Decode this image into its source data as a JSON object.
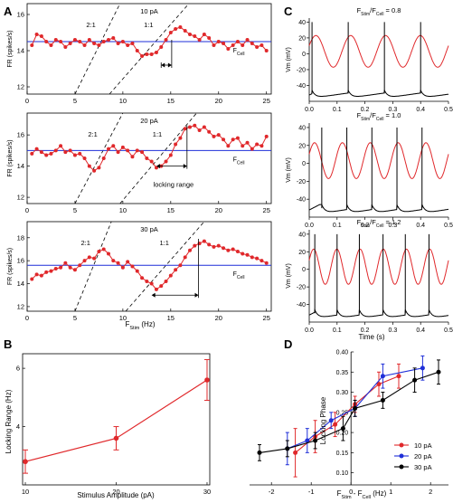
{
  "panel_letters": [
    "A",
    "B",
    "C",
    "D"
  ],
  "panel_a": {
    "xlabel": "F",
    "xlabel_sub": "Stim",
    "xlabel_unit": "(Hz)",
    "ylabel": "FR (spikes/s)",
    "fcell_label": "F",
    "fcell_sub": "Cell",
    "ratio_21": "2:1",
    "ratio_11": "1:1",
    "locking_range_label": "locking range"
  },
  "panel_c": {
    "prefix": "F",
    "sub_stim": "Stim",
    "sub_cell": "Cell",
    "ylabel": "Vm (mV)",
    "xlabel": "Time (s)"
  },
  "chart_data": [
    {
      "type": "line",
      "panel": "A",
      "title": "10 pA",
      "xlim": [
        0,
        25.5
      ],
      "ylim": [
        11.6,
        16.6
      ],
      "xticks": [
        0,
        5,
        10,
        15,
        20,
        25
      ],
      "yticks": [
        12,
        14,
        16
      ],
      "fcell": 14.5,
      "x": [
        0.5,
        1,
        1.5,
        2,
        2.5,
        3,
        3.5,
        4,
        4.5,
        5,
        5.5,
        6,
        6.5,
        7,
        7.5,
        8,
        8.5,
        9,
        9.5,
        10,
        10.5,
        11,
        11.5,
        12,
        12.5,
        13,
        13.5,
        14,
        14.5,
        15,
        15.5,
        16,
        16.5,
        17,
        17.5,
        18,
        18.5,
        19,
        19.5,
        20,
        20.5,
        21,
        21.5,
        22,
        22.5,
        23,
        23.5,
        24,
        24.5,
        25
      ],
      "y": [
        14.3,
        14.9,
        14.8,
        14.5,
        14.3,
        14.6,
        14.5,
        14.2,
        14.4,
        14.6,
        14.5,
        14.3,
        14.6,
        14.4,
        14.3,
        14.5,
        14.6,
        14.7,
        14.4,
        14.5,
        14.3,
        14.4,
        14.0,
        13.7,
        13.8,
        13.8,
        13.9,
        14.2,
        14.6,
        15.0,
        15.2,
        15.3,
        15.1,
        14.9,
        14.8,
        14.6,
        14.9,
        14.7,
        14.3,
        14.5,
        14.4,
        14.1,
        14.3,
        14.5,
        14.3,
        14.6,
        14.4,
        14.2,
        14.3,
        14.0
      ],
      "line_21": [
        [
          5.0,
          11.6
        ],
        [
          9.7,
          16.6
        ]
      ],
      "line_11": [
        [
          8.6,
          11.6
        ],
        [
          16.9,
          16.6
        ]
      ],
      "range": [
        14.0,
        15.1
      ]
    },
    {
      "type": "line",
      "panel": "A",
      "title": "20 pA",
      "xlim": [
        0,
        25.5
      ],
      "ylim": [
        11.6,
        17.4
      ],
      "xticks": [
        0,
        5,
        10,
        15,
        20,
        25
      ],
      "yticks": [
        12,
        14,
        16
      ],
      "fcell": 15.0,
      "x": [
        0.5,
        1,
        1.5,
        2,
        2.5,
        3,
        3.5,
        4,
        4.5,
        5,
        5.5,
        6,
        6.5,
        7,
        7.5,
        8,
        8.5,
        9,
        9.5,
        10,
        10.5,
        11,
        11.5,
        12,
        12.5,
        13,
        13.5,
        14,
        14.5,
        15,
        15.5,
        16,
        16.5,
        17,
        17.5,
        18,
        18.5,
        19,
        19.5,
        20,
        20.5,
        21,
        21.5,
        22,
        22.5,
        23,
        23.5,
        24,
        24.5,
        25
      ],
      "y": [
        14.8,
        15.1,
        14.9,
        14.7,
        14.8,
        15.0,
        15.3,
        14.9,
        15.0,
        14.7,
        14.8,
        14.5,
        14.0,
        13.7,
        13.9,
        14.5,
        15.1,
        15.3,
        14.9,
        15.2,
        15.0,
        14.6,
        15.0,
        14.9,
        14.5,
        14.3,
        13.9,
        14.0,
        14.3,
        14.7,
        15.4,
        15.8,
        16.4,
        16.5,
        16.6,
        16.3,
        16.5,
        16.2,
        15.9,
        16.0,
        15.7,
        15.3,
        15.7,
        15.8,
        15.3,
        15.5,
        15.1,
        15.4,
        15.3,
        15.9
      ],
      "line_21": [
        [
          5.0,
          11.6
        ],
        [
          10.0,
          17.4
        ]
      ],
      "line_11": [
        [
          9.7,
          11.6
        ],
        [
          17.7,
          17.4
        ]
      ],
      "range": [
        13.5,
        16.7
      ]
    },
    {
      "type": "line",
      "panel": "A",
      "title": "30 pA",
      "xlim": [
        0,
        25.5
      ],
      "ylim": [
        11.6,
        19.4
      ],
      "xticks": [
        0,
        5,
        10,
        15,
        20,
        25
      ],
      "yticks": [
        12,
        14,
        16,
        18
      ],
      "fcell": 15.6,
      "x": [
        0.5,
        1,
        1.5,
        2,
        2.5,
        3,
        3.5,
        4,
        4.5,
        5,
        5.5,
        6,
        6.5,
        7,
        7.5,
        8,
        8.5,
        9,
        9.5,
        10,
        10.5,
        11,
        11.5,
        12,
        12.5,
        13,
        13.5,
        14,
        14.5,
        15,
        15.5,
        16,
        16.5,
        17,
        17.5,
        18,
        18.5,
        19,
        19.5,
        20,
        20.5,
        21,
        21.5,
        22,
        22.5,
        23,
        23.5,
        24,
        24.5,
        25
      ],
      "y": [
        14.4,
        14.8,
        14.7,
        15.0,
        15.1,
        15.3,
        15.4,
        15.8,
        15.4,
        15.2,
        15.6,
        16.0,
        16.3,
        16.2,
        16.8,
        17.0,
        16.6,
        16.0,
        15.8,
        15.4,
        15.9,
        15.5,
        15.1,
        14.5,
        14.2,
        14.0,
        13.5,
        13.8,
        14.2,
        14.7,
        15.2,
        15.6,
        16.3,
        16.9,
        17.3,
        17.5,
        17.7,
        17.4,
        17.2,
        17.3,
        17.1,
        16.9,
        17.0,
        16.8,
        16.6,
        16.5,
        16.3,
        16.2,
        16.0,
        15.8
      ],
      "line_21": [
        [
          5.0,
          11.6
        ],
        [
          8.8,
          19.4
        ]
      ],
      "line_11": [
        [
          10.3,
          11.6
        ],
        [
          18.5,
          19.4
        ]
      ],
      "range": [
        13.0,
        17.9
      ]
    },
    {
      "type": "line",
      "panel": "B",
      "xlabel": "Stimulus Amplitude (pA)",
      "ylabel": "Locking Range (Hz)",
      "xlim": [
        9.7,
        30.3
      ],
      "ylim": [
        2.0,
        6.5
      ],
      "xticks": [
        10,
        20,
        30
      ],
      "yticks": [
        4,
        6
      ],
      "series": [
        {
          "x": [
            10,
            20,
            30
          ],
          "values": [
            2.8,
            3.6,
            5.6
          ],
          "errors": [
            0.4,
            0.4,
            0.7
          ],
          "color": "#e0282b"
        }
      ]
    },
    {
      "type": "line",
      "panel": "C",
      "subplots": [
        {
          "ratio_label": " = 0.8",
          "stim_periods": 4,
          "spike_times": [
            0.01,
            0.14,
            0.27,
            0.4
          ]
        },
        {
          "ratio_label": " = 1.0",
          "stim_periods": 5,
          "spike_times": [
            0.045,
            0.135,
            0.225,
            0.315,
            0.405
          ]
        },
        {
          "ratio_label": " = 1.2",
          "stim_periods": 6,
          "spike_times": [
            0.02,
            0.1,
            0.18,
            0.265,
            0.345,
            0.43
          ]
        }
      ],
      "xlim": [
        0,
        0.5
      ],
      "ylim": [
        -60,
        45
      ],
      "xticks": [
        0.0,
        0.1,
        0.2,
        0.3,
        0.4,
        0.5
      ],
      "yticks": [
        -40,
        -20,
        0,
        20,
        40
      ],
      "stim_color": "#e0282b",
      "vm_color": "#000000"
    },
    {
      "type": "line",
      "panel": "D",
      "xlabel": "F",
      "xlabel_sub1": "Stim",
      "xlabel_mid": " - F",
      "xlabel_sub2": "Cell",
      "xlabel_unit": " (Hz)",
      "ylabel": "Locking Phase",
      "xlim": [
        -2.55,
        2.45
      ],
      "ylim": [
        0.07,
        0.4
      ],
      "xticks": [
        -2,
        -1,
        0,
        1,
        2
      ],
      "yticks": [
        0.1,
        0.15,
        0.2,
        0.25,
        0.3,
        0.35,
        0.4
      ],
      "series": [
        {
          "name": "10 pA",
          "color": "#e0282b",
          "x": [
            -1.4,
            -0.9,
            -0.4,
            0.1,
            0.7,
            1.2
          ],
          "values": [
            0.15,
            0.19,
            0.22,
            0.27,
            0.32,
            0.34
          ],
          "errors": [
            0.06,
            0.04,
            0.03,
            0.02,
            0.03,
            0.03
          ]
        },
        {
          "name": "20 pA",
          "color": "#1f2fd8",
          "x": [
            -1.6,
            -1.1,
            -0.5,
            0.1,
            0.8,
            1.8
          ],
          "values": [
            0.16,
            0.18,
            0.23,
            0.26,
            0.34,
            0.36
          ],
          "errors": [
            0.04,
            0.03,
            0.02,
            0.02,
            0.03,
            0.03
          ]
        },
        {
          "name": "30 pA",
          "color": "#000000",
          "x": [
            -2.3,
            -1.6,
            -0.9,
            -0.2,
            0.1,
            0.8,
            1.6,
            2.2
          ],
          "values": [
            0.15,
            0.16,
            0.18,
            0.21,
            0.26,
            0.28,
            0.33,
            0.35
          ],
          "errors": [
            0.02,
            0.02,
            0.02,
            0.03,
            0.02,
            0.02,
            0.03,
            0.03
          ]
        }
      ]
    }
  ]
}
